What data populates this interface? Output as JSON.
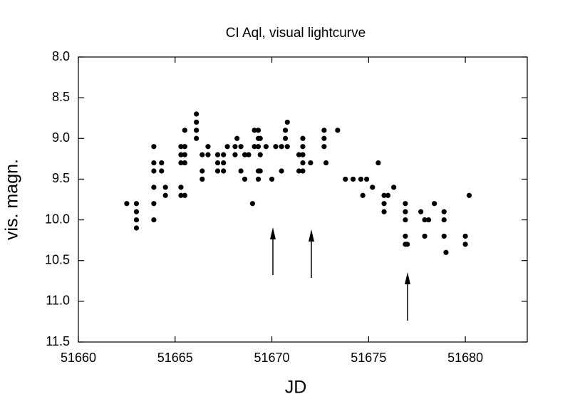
{
  "chart_data": {
    "type": "scatter",
    "title": "CI Aql, visual lightcurve",
    "x_label": "JD",
    "y_label": "vis. magn.",
    "xlim": [
      51660,
      51683.2
    ],
    "ylim": [
      8.0,
      11.5
    ],
    "y_inverted": true,
    "xticks": [
      51660,
      51665,
      51670,
      51675,
      51680
    ],
    "yticks": [
      {
        "value": 8,
        "label": "8.0"
      },
      8.5,
      {
        "value": 9,
        "label": "9.0"
      },
      9.5,
      {
        "value": 10,
        "label": "10.0"
      },
      10.5,
      {
        "value": 11,
        "label": "11.0"
      },
      11.5
    ],
    "grid": false,
    "series": [
      {
        "color": "#000000",
        "x": [
          51662.5,
          51663.0,
          51663.0,
          51663.0,
          51663.0,
          51663.9,
          51663.9,
          51663.9,
          51663.9,
          51663.9,
          51663.9,
          51664.3,
          51664.3,
          51664.5,
          51664.5,
          51665.3,
          51665.3,
          51665.3,
          51665.3,
          51665.3,
          51665.5,
          51665.5,
          51665.5,
          51665.5,
          51665.5,
          51666.1,
          51666.1,
          51666.1,
          51666.1,
          51666.4,
          51666.4,
          51666.4,
          51666.7,
          51666.7,
          51667.2,
          51667.2,
          51667.2,
          51667.5,
          51667.5,
          51667.5,
          51667.7,
          51668.1,
          51668.1,
          51668.2,
          51668.4,
          51668.4,
          51668.6,
          51668.6,
          51668.8,
          51669.0,
          51669.1,
          51669.1,
          51669.3,
          51669.3,
          51669.3,
          51669.3,
          51669.3,
          51669.4,
          51669.4,
          51669.4,
          51669.7,
          51670.0,
          51670.2,
          51670.5,
          51670.5,
          51670.7,
          51670.7,
          51670.8,
          51670.8,
          51671.4,
          51671.4,
          51671.6,
          51671.6,
          51671.6,
          51671.6,
          51671.6,
          51672.0,
          51672.7,
          51672.7,
          51672.7,
          51672.8,
          51673.4,
          51673.8,
          51674.2,
          51674.6,
          51674.7,
          51674.9,
          51675.2,
          51675.5,
          51675.8,
          51675.8,
          51675.8,
          51676.0,
          51676.3,
          51676.9,
          51676.9,
          51676.9,
          51676.9,
          51676.9,
          51677.0,
          51677.7,
          51677.9,
          51677.9,
          51678.1,
          51678.4,
          51678.9,
          51678.9,
          51678.9,
          51679.0,
          51680.0,
          51680.0,
          51680.2
        ],
        "values": [
          9.8,
          9.8,
          9.9,
          10.0,
          10.1,
          9.1,
          9.3,
          9.4,
          9.6,
          9.8,
          10.0,
          9.3,
          9.4,
          9.6,
          9.7,
          9.1,
          9.2,
          9.3,
          9.6,
          9.7,
          8.9,
          9.1,
          9.2,
          9.3,
          9.7,
          8.7,
          8.8,
          8.9,
          9.0,
          9.2,
          9.4,
          9.5,
          9.1,
          9.2,
          9.2,
          9.3,
          9.4,
          9.2,
          9.3,
          9.4,
          9.1,
          9.1,
          9.2,
          9.0,
          9.1,
          9.4,
          9.2,
          9.5,
          9.2,
          9.8,
          8.9,
          9.1,
          8.9,
          9.0,
          9.1,
          9.4,
          9.5,
          9.0,
          9.2,
          9.4,
          9.1,
          9.5,
          9.1,
          9.1,
          9.4,
          8.9,
          9.0,
          8.8,
          9.1,
          9.2,
          9.4,
          9.0,
          9.1,
          9.2,
          9.3,
          9.4,
          9.3,
          8.9,
          9.0,
          9.1,
          9.3,
          8.9,
          9.5,
          9.5,
          9.5,
          9.7,
          9.5,
          9.6,
          9.3,
          9.7,
          9.8,
          9.9,
          9.7,
          9.6,
          9.8,
          9.9,
          10.0,
          10.2,
          10.3,
          10.3,
          9.9,
          10.0,
          10.2,
          10.0,
          9.8,
          9.9,
          10.0,
          10.2,
          10.4,
          10.2,
          10.3,
          9.7
        ]
      }
    ]
  }
}
